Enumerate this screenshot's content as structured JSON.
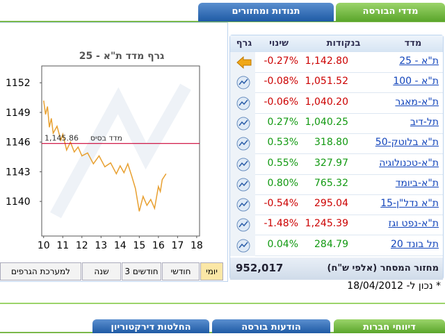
{
  "tabs": [
    "מדדי הבורסה",
    "תנודות ומחזורים"
  ],
  "chart_data": {
    "type": "line",
    "title": "גרף מדד ת\"א - 25",
    "x": [
      10,
      10.1,
      10.2,
      10.3,
      10.4,
      10.5,
      10.7,
      10.9,
      11,
      11.2,
      11.4,
      11.6,
      11.8,
      12,
      12.3,
      12.6,
      12.9,
      13.2,
      13.5,
      13.8,
      14,
      14.2,
      14.4,
      14.6,
      14.8,
      15,
      15.2,
      15.4,
      15.6,
      15.8,
      16,
      16.1,
      16.2,
      16.4
    ],
    "values": [
      1150.2,
      1148.8,
      1149.6,
      1147.5,
      1148.4,
      1146.9,
      1147.6,
      1146.2,
      1146.8,
      1145.2,
      1146.0,
      1145.0,
      1145.5,
      1144.6,
      1144.9,
      1143.8,
      1144.6,
      1143.5,
      1143.9,
      1142.8,
      1143.6,
      1142.9,
      1143.8,
      1142.6,
      1141.3,
      1139.0,
      1140.5,
      1139.6,
      1140.2,
      1139.3,
      1141.5,
      1141.0,
      1142.2,
      1142.8
    ],
    "color": "#e8a030",
    "xlim": [
      9.9,
      18.15
    ],
    "xticks": [
      10,
      11,
      12,
      13,
      14,
      15,
      16,
      17,
      18
    ],
    "ylim": [
      1136.5,
      1153.7
    ],
    "yticks": [
      1140,
      1143,
      1146,
      1149,
      1152
    ],
    "base_line": {
      "label": "מדד בסיס",
      "value": 1145.86,
      "value_label": "1,145.86",
      "color": "#cc0033"
    }
  },
  "range_buttons": [
    "יומי",
    "חודשי",
    "3 חודשים",
    "שנה",
    "למערכת הגרפים"
  ],
  "table": {
    "headers": [
      "מדד",
      "בנקודות",
      "שינוי",
      "גרף"
    ],
    "rows": [
      {
        "name": "ת\"א - 25",
        "points": "1,142.80",
        "change": "-0.27%",
        "color": "#cc0000"
      },
      {
        "name": "ת\"א - 100",
        "points": "1,051.52",
        "change": "-0.08%",
        "color": "#cc0000"
      },
      {
        "name": "ת\"א-מאגר",
        "points": "1,040.20",
        "change": "-0.06%",
        "color": "#cc0000"
      },
      {
        "name": "תל-דיב",
        "points": "1,040.25",
        "change": "0.27%",
        "color": "#119911"
      },
      {
        "name": "ת\"א בלוטק-50",
        "points": "318.80",
        "change": "0.53%",
        "color": "#119911"
      },
      {
        "name": "ת\"א-טכנולוגיה",
        "points": "327.97",
        "change": "0.55%",
        "color": "#119911"
      },
      {
        "name": "ת\"א-ביומד",
        "points": "765.32",
        "change": "0.80%",
        "color": "#119911"
      },
      {
        "name": "ת\"א נדל\"ן-15",
        "points": "295.04",
        "change": "-0.54%",
        "color": "#cc0000"
      },
      {
        "name": "ת\"א-נפט וגז",
        "points": "1,245.39",
        "change": "-1.48%",
        "color": "#cc0000"
      },
      {
        "name": "תל בונד 20",
        "points": "284.79",
        "change": "0.04%",
        "color": "#119911"
      }
    ],
    "footer_label": "מחזור המסחר (אלפי ש\"ח)",
    "footer_value": "952,017"
  },
  "update_note": "* נכון ל- 18/04/2012",
  "bottom_tabs": [
    "דיווחי חברות",
    "הודעות בורסה",
    "החלטות דירקטוריון"
  ]
}
